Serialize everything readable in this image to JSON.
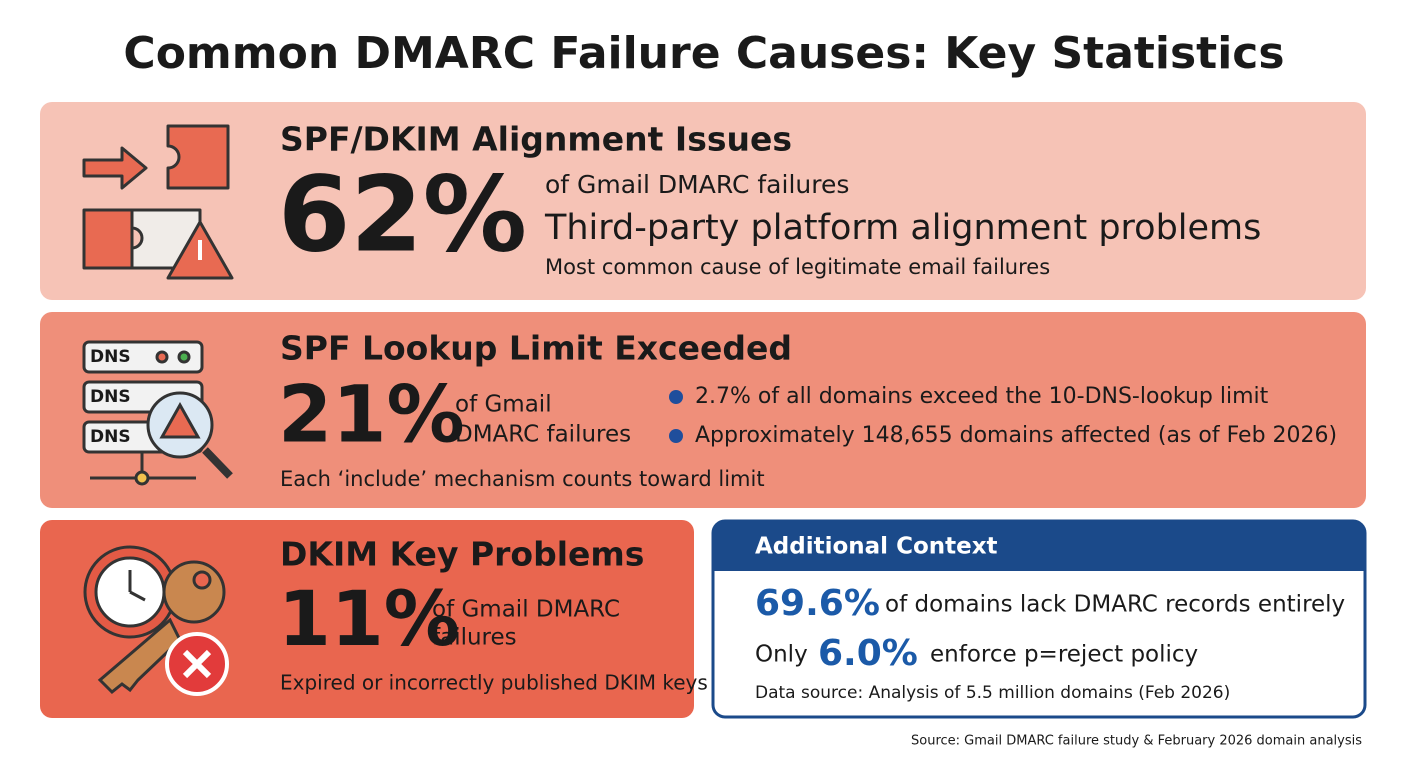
{
  "title": "Common DMARC Failure Causes: Key Statistics",
  "cards": [
    {
      "heading": "SPF/DKIM Alignment Issues",
      "stat": "62%",
      "caption": "of Gmail DMARC failures",
      "subheading": "Third-party platform alignment problems",
      "note": "Most common cause of legitimate email failures"
    },
    {
      "heading": "SPF Lookup Limit Exceeded",
      "stat": "21%",
      "caption_lines": [
        "of Gmail",
        "DMARC failures"
      ],
      "bullets": [
        "2.7% of all domains exceed the 10-DNS-lookup limit",
        "Approximately 148,655 domains affected (as of Feb 2026)"
      ],
      "note": "Each ‘include’ mechanism counts toward limit",
      "icon_labels": [
        "DNS",
        "DNS",
        "DNS"
      ]
    },
    {
      "heading": "DKIM Key Problems",
      "stat": "11%",
      "caption_lines": [
        "of Gmail DMARC",
        "failures"
      ],
      "note": "Expired or incorrectly published DKIM keys"
    }
  ],
  "context": {
    "title": "Additional Context",
    "line1": {
      "stat": "69.6%",
      "text": "of domains lack DMARC records entirely"
    },
    "line2": {
      "prefix": "Only",
      "stat": "6.0%",
      "text": "enforce p=reject policy"
    },
    "note": "Data source: Analysis of 5.5 million domains (Feb 2026)"
  },
  "source": "Source: Gmail DMARC failure study & February 2026 domain analysis"
}
